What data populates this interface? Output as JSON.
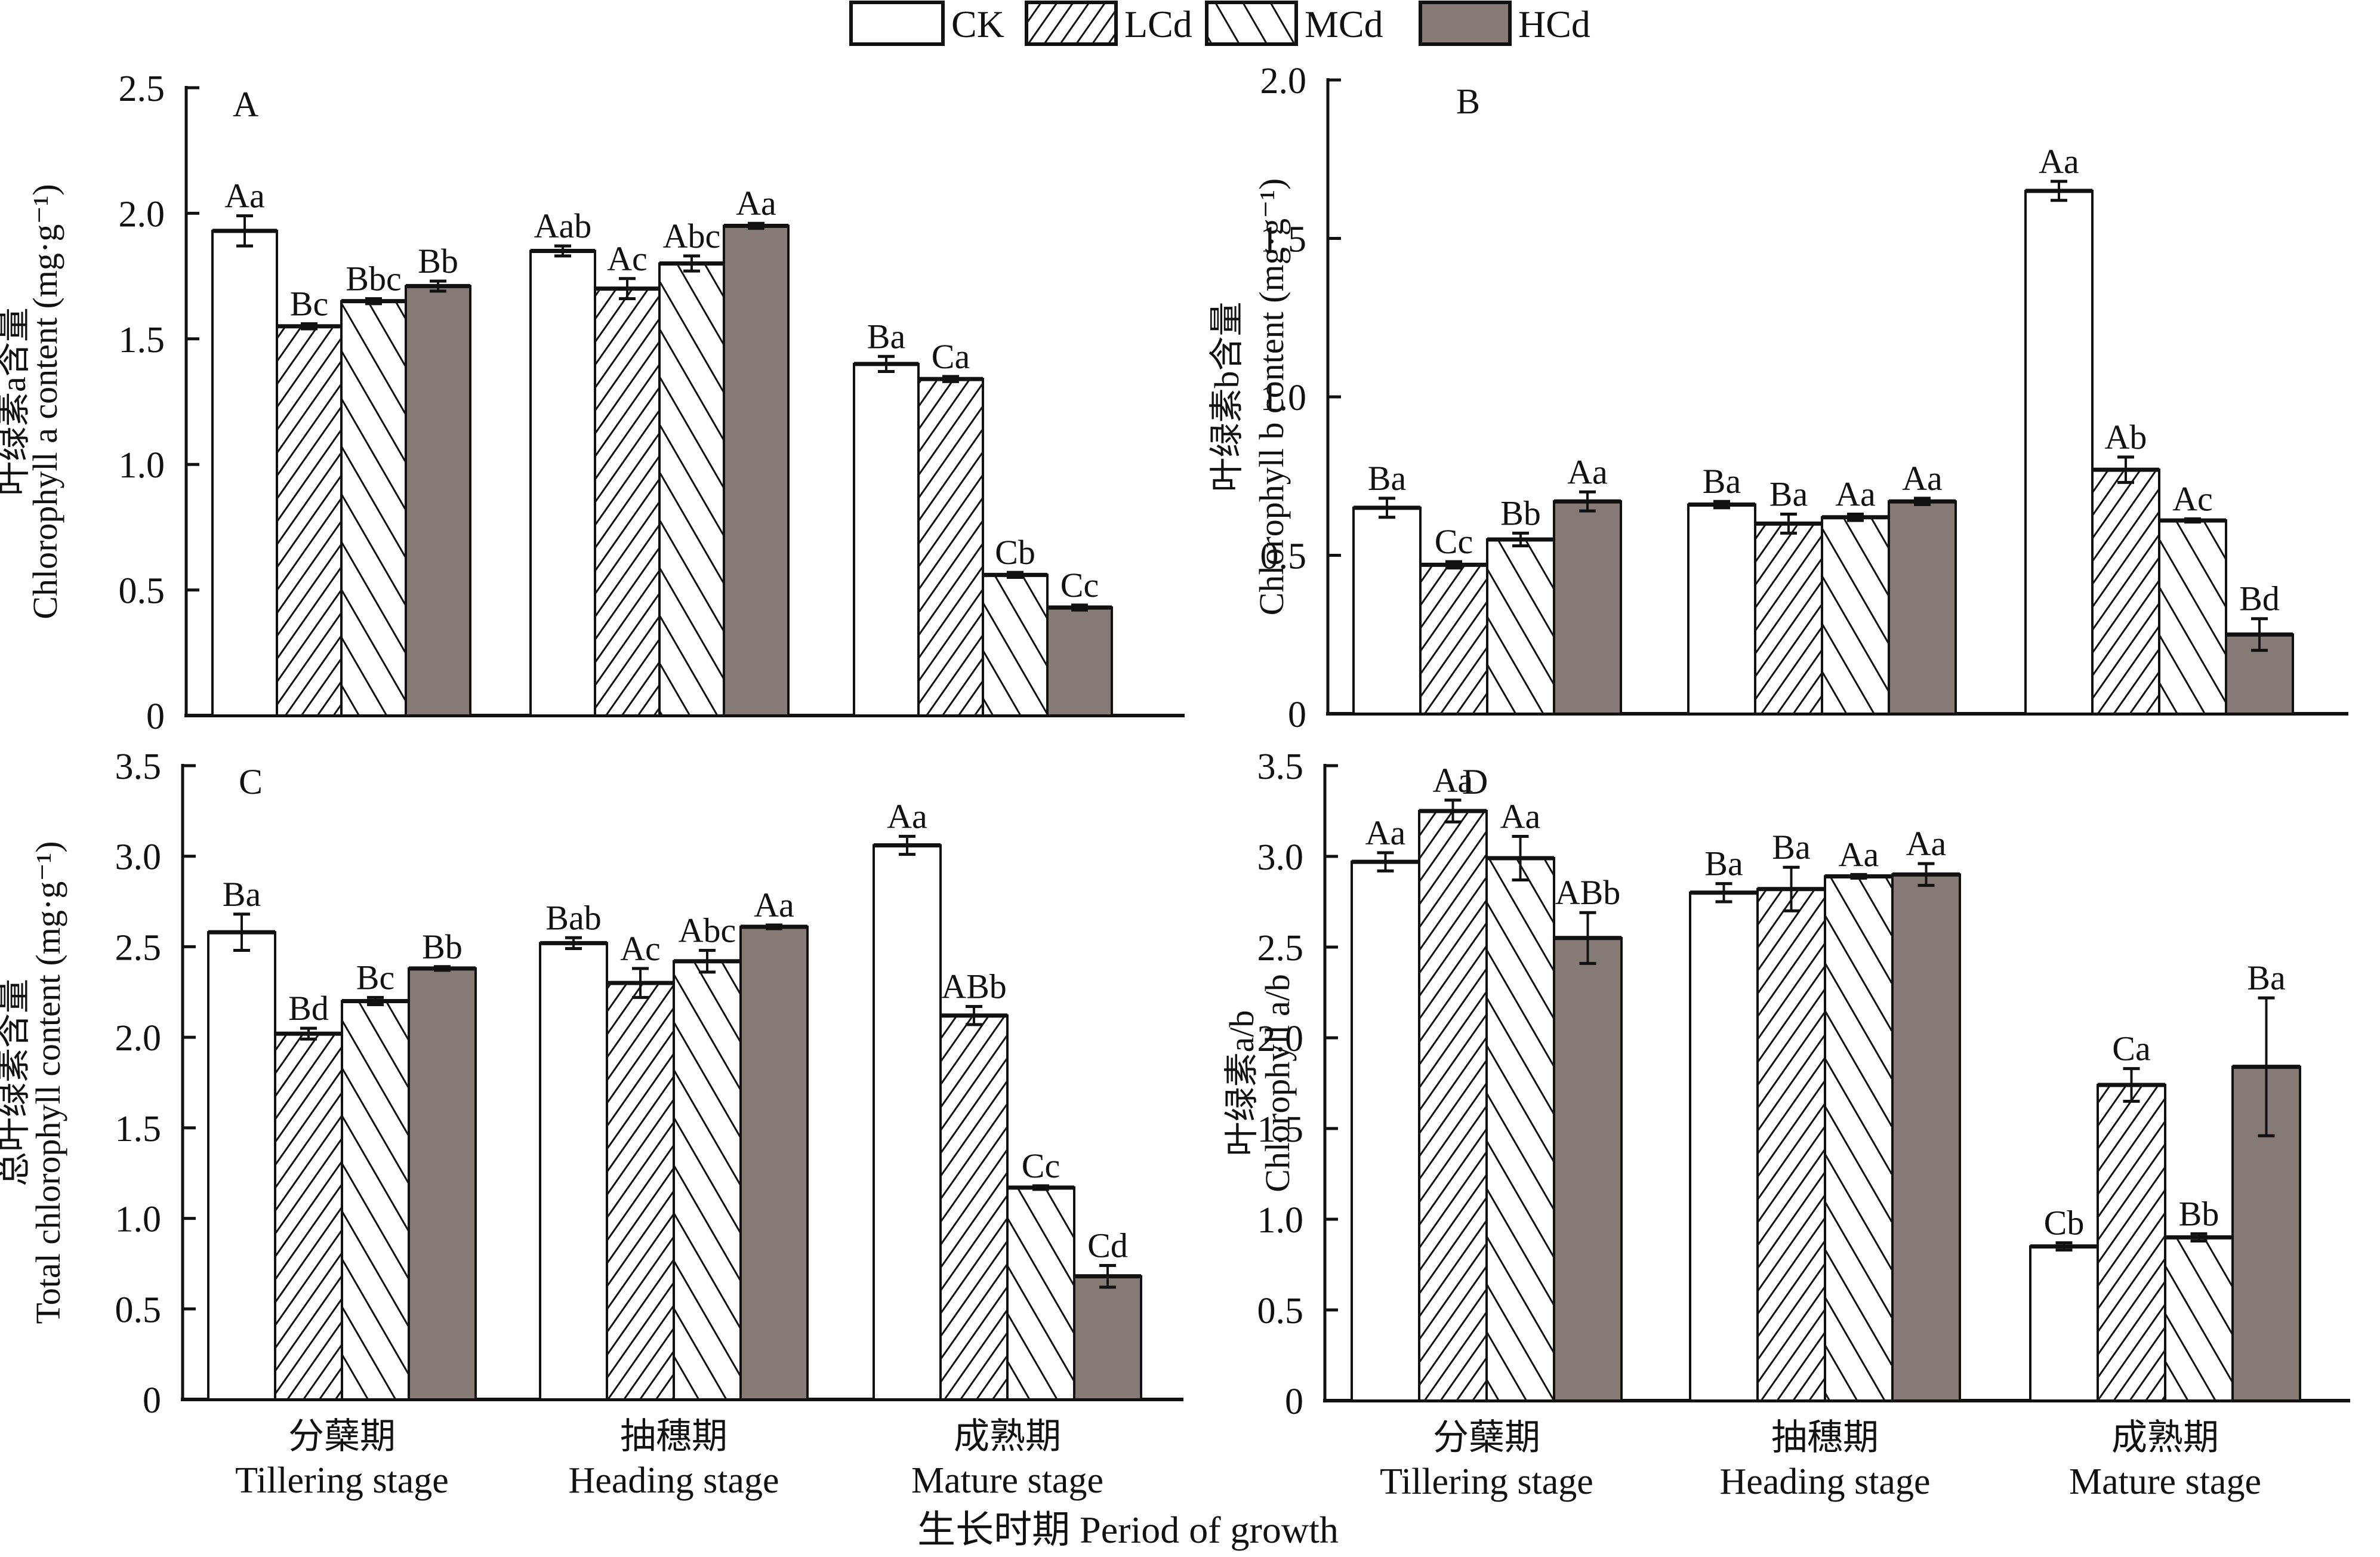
{
  "legend": {
    "entries": [
      {
        "name": "CK",
        "pattern": "white",
        "color": "#ffffff"
      },
      {
        "name": "LCd",
        "pattern": "fine-forward-hatch",
        "color": "#ffffff"
      },
      {
        "name": "MCd",
        "pattern": "wide-back-hatch",
        "color": "#ffffff"
      },
      {
        "name": "HCd",
        "pattern": "solid-gray",
        "color": "#857a75"
      }
    ]
  },
  "shared_x_label": "生长时期 Period of growth",
  "chart_data": [
    {
      "panel": "A",
      "type": "bar",
      "title": "",
      "categories": [
        "分蘖期\nTillering stage",
        "抽穗期\nHeading stage",
        "成熟期\nMature stage"
      ],
      "category_labels": [
        {
          "zh": "分蘖期",
          "en": "Tillering stage"
        },
        {
          "zh": "抽穗期",
          "en": "Heading stage"
        },
        {
          "zh": "成熟期",
          "en": "Mature stage"
        }
      ],
      "show_x_labels": false,
      "ylabel_zh": "叶绿素a含量",
      "ylabel_en": "Chlorophyll a content (mg·g⁻¹)",
      "ylim": [
        0,
        2.5
      ],
      "yticks": [
        "0",
        "0.5",
        "1.0",
        "1.5",
        "2.0",
        "2.5"
      ],
      "ytick_values": [
        0,
        0.5,
        1.0,
        1.5,
        2.0,
        2.5
      ],
      "series": [
        {
          "name": "CK",
          "values": [
            1.93,
            1.85,
            1.4
          ],
          "errors": [
            0.06,
            0.02,
            0.03
          ],
          "labels": [
            "Aa",
            "Aab",
            "Ba"
          ]
        },
        {
          "name": "LCd",
          "values": [
            1.55,
            1.7,
            1.34
          ],
          "errors": [
            0.01,
            0.04,
            0.01
          ],
          "labels": [
            "Bc",
            "Ac",
            "Ca"
          ]
        },
        {
          "name": "MCd",
          "values": [
            1.65,
            1.8,
            0.56
          ],
          "errors": [
            0.01,
            0.03,
            0.01
          ],
          "labels": [
            "Bbc",
            "Abc",
            "Cb"
          ]
        },
        {
          "name": "HCd",
          "values": [
            1.71,
            1.95,
            0.43
          ],
          "errors": [
            0.02,
            0.01,
            0.01
          ],
          "labels": [
            "Bb",
            "Aa",
            "Cc"
          ]
        }
      ]
    },
    {
      "panel": "B",
      "type": "bar",
      "title": "",
      "categories": [
        "分蘖期\nTillering stage",
        "抽穗期\nHeading stage",
        "成熟期\nMature stage"
      ],
      "category_labels": [
        {
          "zh": "分蘖期",
          "en": "Tillering stage"
        },
        {
          "zh": "抽穗期",
          "en": "Heading stage"
        },
        {
          "zh": "成熟期",
          "en": "Mature stage"
        }
      ],
      "show_x_labels": false,
      "ylabel_zh": "叶绿素b含量",
      "ylabel_en": "Chlorophyll b content (mg·g⁻¹)",
      "ylim": [
        0,
        2.0
      ],
      "yticks": [
        "0",
        "0.5",
        "1.0",
        "1.5",
        "2.0"
      ],
      "ytick_values": [
        0,
        0.5,
        1.0,
        1.5,
        2.0
      ],
      "series": [
        {
          "name": "CK",
          "values": [
            0.65,
            0.66,
            1.65
          ],
          "errors": [
            0.03,
            0.01,
            0.03
          ],
          "labels": [
            "Ba",
            "Ba",
            "Aa"
          ]
        },
        {
          "name": "LCd",
          "values": [
            0.47,
            0.6,
            0.77
          ],
          "errors": [
            0.01,
            0.03,
            0.04
          ],
          "labels": [
            "Cc",
            "Ba",
            "Ab"
          ]
        },
        {
          "name": "MCd",
          "values": [
            0.55,
            0.62,
            0.61
          ],
          "errors": [
            0.02,
            0.01,
            0.005
          ],
          "labels": [
            "Bb",
            "Aa",
            "Ac"
          ]
        },
        {
          "name": "HCd",
          "values": [
            0.67,
            0.67,
            0.25
          ],
          "errors": [
            0.03,
            0.01,
            0.05
          ],
          "labels": [
            "Aa",
            "Aa",
            "Bd"
          ]
        }
      ]
    },
    {
      "panel": "C",
      "type": "bar",
      "title": "",
      "categories": [
        "分蘖期\nTillering stage",
        "抽穗期\nHeading stage",
        "成熟期\nMature stage"
      ],
      "category_labels": [
        {
          "zh": "分蘖期",
          "en": "Tillering stage"
        },
        {
          "zh": "抽穗期",
          "en": "Heading stage"
        },
        {
          "zh": "成熟期",
          "en": "Mature stage"
        }
      ],
      "show_x_labels": true,
      "ylabel_zh": "总叶绿素含量",
      "ylabel_en": "Total chlorophyll content (mg·g⁻¹)",
      "ylim": [
        0,
        3.5
      ],
      "yticks": [
        "0",
        "0.5",
        "1.0",
        "1.5",
        "2.0",
        "2.5",
        "3.0",
        "3.5"
      ],
      "ytick_values": [
        0,
        0.5,
        1.0,
        1.5,
        2.0,
        2.5,
        3.0,
        3.5
      ],
      "series": [
        {
          "name": "CK",
          "values": [
            2.58,
            2.52,
            3.06
          ],
          "errors": [
            0.1,
            0.03,
            0.05
          ],
          "labels": [
            "Ba",
            "Bab",
            "Aa"
          ]
        },
        {
          "name": "LCd",
          "values": [
            2.02,
            2.3,
            2.12
          ],
          "errors": [
            0.03,
            0.08,
            0.05
          ],
          "labels": [
            "Bd",
            "Ac",
            "ABb"
          ]
        },
        {
          "name": "MCd",
          "values": [
            2.2,
            2.42,
            1.17
          ],
          "errors": [
            0.02,
            0.06,
            0.01
          ],
          "labels": [
            "Bc",
            "Abc",
            "Cc"
          ]
        },
        {
          "name": "HCd",
          "values": [
            2.38,
            2.61,
            0.68
          ],
          "errors": [
            0.01,
            0.01,
            0.06
          ],
          "labels": [
            "Bb",
            "Aa",
            "Cd"
          ]
        }
      ]
    },
    {
      "panel": "D",
      "type": "bar",
      "title": "",
      "categories": [
        "分蘖期\nTillering stage",
        "抽穗期\nHeading stage",
        "成熟期\nMature stage"
      ],
      "category_labels": [
        {
          "zh": "分蘖期",
          "en": "Tillering stage"
        },
        {
          "zh": "抽穗期",
          "en": "Heading stage"
        },
        {
          "zh": "成熟期",
          "en": "Mature stage"
        }
      ],
      "show_x_labels": true,
      "ylabel_zh": "叶绿素a/b",
      "ylabel_en": "Chlorophyll a/b",
      "ylim": [
        0,
        3.5
      ],
      "yticks": [
        "0",
        "0.5",
        "1.0",
        "1.5",
        "2.0",
        "2.5",
        "3.0",
        "3.5"
      ],
      "ytick_values": [
        0,
        0.5,
        1.0,
        1.5,
        2.0,
        2.5,
        3.0,
        3.5
      ],
      "series": [
        {
          "name": "CK",
          "values": [
            2.97,
            2.8,
            0.85
          ],
          "errors": [
            0.05,
            0.05,
            0.02
          ],
          "labels": [
            "Aa",
            "Ba",
            "Cb"
          ]
        },
        {
          "name": "LCd",
          "values": [
            3.25,
            2.82,
            1.74
          ],
          "errors": [
            0.06,
            0.12,
            0.09
          ],
          "labels": [
            "Aa",
            "Ba",
            "Ca"
          ]
        },
        {
          "name": "MCd",
          "values": [
            2.99,
            2.89,
            0.9
          ],
          "errors": [
            0.12,
            0.01,
            0.02
          ],
          "labels": [
            "Aa",
            "Aa",
            "Bb"
          ]
        },
        {
          "name": "HCd",
          "values": [
            2.55,
            2.9,
            1.84
          ],
          "errors": [
            0.14,
            0.06,
            0.38
          ],
          "labels": [
            "ABb",
            "Aa",
            "Ba"
          ]
        }
      ]
    }
  ]
}
